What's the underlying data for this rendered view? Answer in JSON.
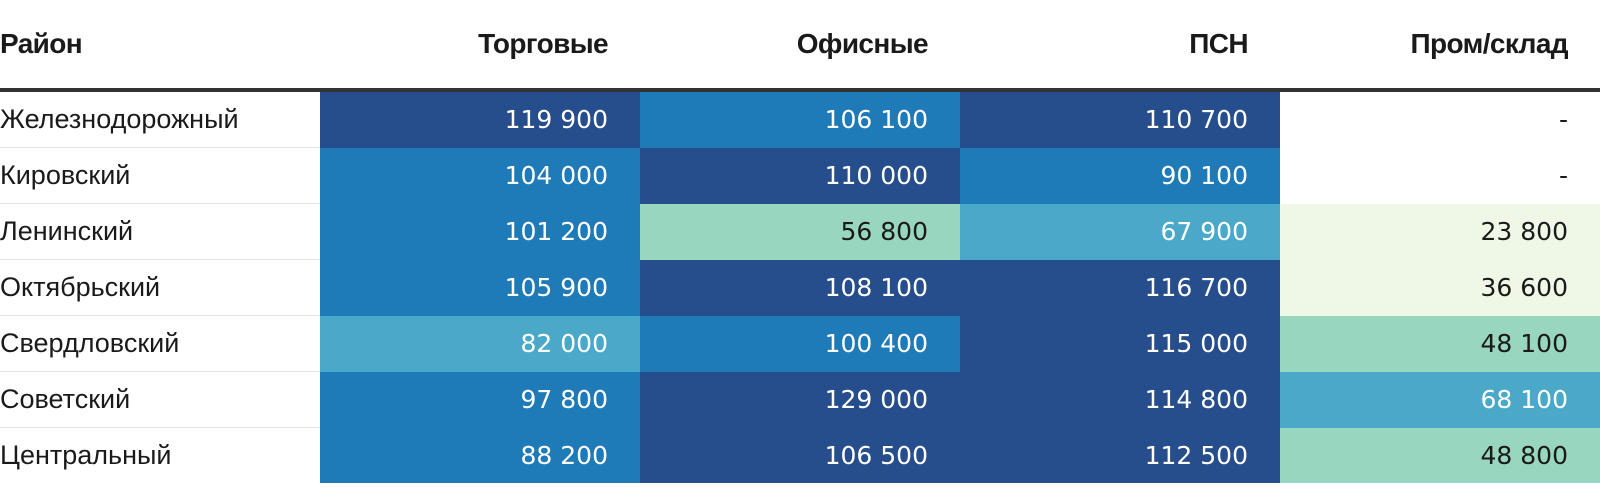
{
  "chart_data": {
    "type": "table",
    "columns": [
      "Район",
      "Торговые",
      "Офисные",
      "ПСН",
      "Пром/склад"
    ],
    "rows": [
      {
        "district": "Железнодорожный",
        "values": [
          119900,
          106100,
          110700,
          null
        ],
        "labels": [
          "119 900",
          "106 100",
          "110 700",
          "-"
        ]
      },
      {
        "district": "Кировский",
        "values": [
          104000,
          110000,
          90100,
          null
        ],
        "labels": [
          "104 000",
          "110 000",
          "90 100",
          "-"
        ]
      },
      {
        "district": "Ленинский",
        "values": [
          101200,
          56800,
          67900,
          23800
        ],
        "labels": [
          "101 200",
          "56 800",
          "67 900",
          "23 800"
        ]
      },
      {
        "district": "Октябрьский",
        "values": [
          105900,
          108100,
          116700,
          36600
        ],
        "labels": [
          "105 900",
          "108 100",
          "116 700",
          "36 600"
        ]
      },
      {
        "district": "Свердловский",
        "values": [
          82000,
          100400,
          115000,
          48100
        ],
        "labels": [
          "82 000",
          "100 400",
          "115 000",
          "48 100"
        ]
      },
      {
        "district": "Советский",
        "values": [
          97800,
          129000,
          114800,
          68100
        ],
        "labels": [
          "97 800",
          "129 000",
          "114 800",
          "68 100"
        ]
      },
      {
        "district": "Центральный",
        "values": [
          88200,
          106500,
          112500,
          48800
        ],
        "labels": [
          "88 200",
          "106 500",
          "112 500",
          "48 800"
        ]
      }
    ],
    "color_scale": [
      {
        "min": 0,
        "max": 40000,
        "color": "#eff8e6",
        "text": "#1a1a1a"
      },
      {
        "min": 40000,
        "max": 60000,
        "color": "#99d6c0",
        "text": "#1a1a1a"
      },
      {
        "min": 60000,
        "max": 85000,
        "color": "#4aa8c9",
        "text": "#ffffff"
      },
      {
        "min": 85000,
        "max": 106200,
        "color": "#1f7bb8",
        "text": "#ffffff"
      },
      {
        "min": 106200,
        "max": 200000,
        "color": "#264d8c",
        "text": "#ffffff"
      }
    ],
    "empty_color": "#ffffff",
    "empty_text": "#1a1a1a"
  }
}
